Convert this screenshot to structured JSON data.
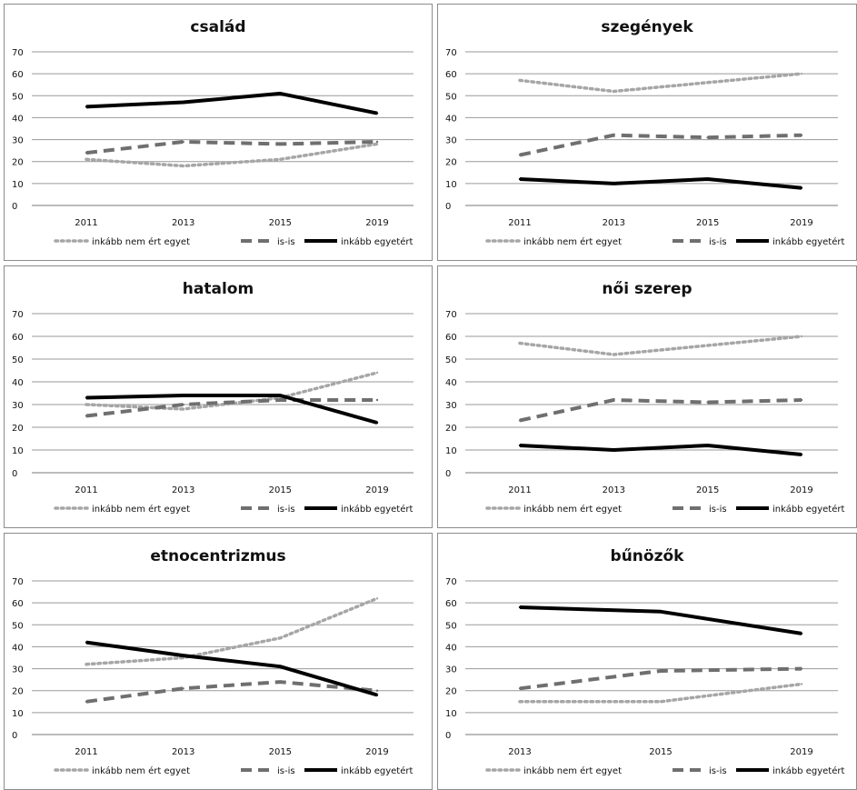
{
  "chart_data": [
    {
      "type": "line",
      "title": "család",
      "categories": [
        "2011",
        "2013",
        "2015",
        "2019"
      ],
      "ylim": [
        0,
        70
      ],
      "yticks": [
        0,
        10,
        20,
        30,
        40,
        50,
        60,
        70
      ],
      "grid": true,
      "legend": "bottom",
      "series": [
        {
          "name": "inkább nem ért egyet",
          "style": "dotted",
          "color": "#a6a6a6",
          "values": [
            21,
            18,
            21,
            28
          ]
        },
        {
          "name": "is-is",
          "style": "dashed",
          "color": "#6f6f6f",
          "values": [
            24,
            29,
            28,
            29
          ]
        },
        {
          "name": "inkább egyetért",
          "style": "solid",
          "color": "#000000",
          "values": [
            45,
            47,
            51,
            42
          ]
        }
      ]
    },
    {
      "type": "line",
      "title": "szegények",
      "categories": [
        "2011",
        "2013",
        "2015",
        "2019"
      ],
      "ylim": [
        0,
        70
      ],
      "yticks": [
        0,
        10,
        20,
        30,
        40,
        50,
        60,
        70
      ],
      "grid": true,
      "legend": "bottom",
      "series": [
        {
          "name": "inkább nem ért egyet",
          "style": "dotted",
          "color": "#a6a6a6",
          "values": [
            57,
            52,
            56,
            60
          ]
        },
        {
          "name": "is-is",
          "style": "dashed",
          "color": "#6f6f6f",
          "values": [
            23,
            32,
            31,
            32
          ]
        },
        {
          "name": "inkább egyetért",
          "style": "solid",
          "color": "#000000",
          "values": [
            12,
            10,
            12,
            8
          ]
        }
      ]
    },
    {
      "type": "line",
      "title": "hatalom",
      "categories": [
        "2011",
        "2013",
        "2015",
        "2019"
      ],
      "ylim": [
        0,
        70
      ],
      "yticks": [
        0,
        10,
        20,
        30,
        40,
        50,
        60,
        70
      ],
      "grid": true,
      "legend": "bottom",
      "series": [
        {
          "name": "inkább nem ért egyet",
          "style": "dotted",
          "color": "#a6a6a6",
          "values": [
            30,
            28,
            33,
            44
          ]
        },
        {
          "name": "is-is",
          "style": "dashed",
          "color": "#6f6f6f",
          "values": [
            25,
            30,
            32,
            32
          ]
        },
        {
          "name": "inkább egyetért",
          "style": "solid",
          "color": "#000000",
          "values": [
            33,
            34,
            34,
            22
          ]
        }
      ]
    },
    {
      "type": "line",
      "title": "női szerep",
      "categories": [
        "2011",
        "2013",
        "2015",
        "2019"
      ],
      "ylim": [
        0,
        70
      ],
      "yticks": [
        0,
        10,
        20,
        30,
        40,
        50,
        60,
        70
      ],
      "grid": true,
      "legend": "bottom",
      "series": [
        {
          "name": "inkább nem ért egyet",
          "style": "dotted",
          "color": "#a6a6a6",
          "values": [
            57,
            52,
            56,
            60
          ]
        },
        {
          "name": "is-is",
          "style": "dashed",
          "color": "#6f6f6f",
          "values": [
            23,
            32,
            31,
            32
          ]
        },
        {
          "name": "inkább egyetért",
          "style": "solid",
          "color": "#000000",
          "values": [
            12,
            10,
            12,
            8
          ]
        }
      ]
    },
    {
      "type": "line",
      "title": "etnocentrizmus",
      "categories": [
        "2011",
        "2013",
        "2015",
        "2019"
      ],
      "ylim": [
        0,
        70
      ],
      "yticks": [
        0,
        10,
        20,
        30,
        40,
        50,
        60,
        70
      ],
      "grid": true,
      "legend": "bottom",
      "series": [
        {
          "name": "inkább nem ért egyet",
          "style": "dotted",
          "color": "#a6a6a6",
          "values": [
            32,
            35,
            44,
            62
          ]
        },
        {
          "name": "is-is",
          "style": "dashed",
          "color": "#6f6f6f",
          "values": [
            15,
            21,
            24,
            20
          ]
        },
        {
          "name": "inkább egyetért",
          "style": "solid",
          "color": "#000000",
          "values": [
            42,
            36,
            31,
            18
          ]
        }
      ]
    },
    {
      "type": "line",
      "title": "bűnözők",
      "categories": [
        "2013",
        "2015",
        "2019"
      ],
      "ylim": [
        0,
        70
      ],
      "yticks": [
        0,
        10,
        20,
        30,
        40,
        50,
        60,
        70
      ],
      "grid": true,
      "legend": "bottom",
      "series": [
        {
          "name": "inkább nem ért egyet",
          "style": "dotted",
          "color": "#a6a6a6",
          "values": [
            15,
            15,
            23
          ]
        },
        {
          "name": "is-is",
          "style": "dashed",
          "color": "#6f6f6f",
          "values": [
            21,
            29,
            30
          ]
        },
        {
          "name": "inkább egyetért",
          "style": "solid",
          "color": "#000000",
          "values": [
            58,
            56,
            46
          ]
        }
      ]
    }
  ]
}
